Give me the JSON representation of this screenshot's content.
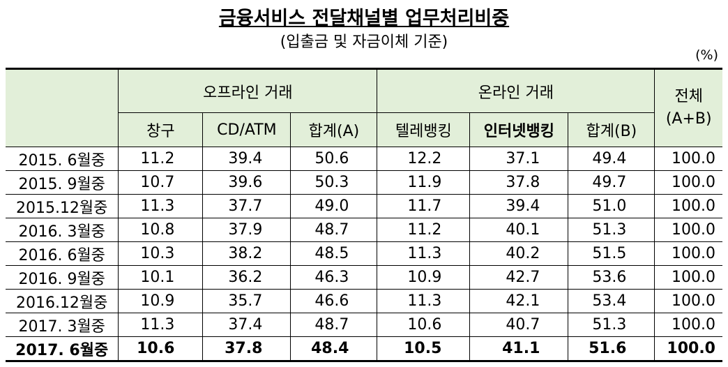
{
  "header": {
    "title": "금융서비스 전달채널별 업무처리비중",
    "subtitle": "(입출금 및 자금이체 기준)",
    "unit": "(%)"
  },
  "table": {
    "groups": [
      "오프라인 거래",
      "온라인 거래",
      "전체\n(A+B)"
    ],
    "columns": [
      "창구",
      "CD/ATM",
      "합계(A)",
      "텔레뱅킹",
      "인터넷뱅킹",
      "합계(B)"
    ],
    "rows": [
      [
        "2015. 6월중",
        "11.2",
        "39.4",
        "50.6",
        "12.2",
        "37.1",
        "49.4",
        "100.0"
      ],
      [
        "2015. 9월중",
        "10.7",
        "39.6",
        "50.3",
        "11.9",
        "37.8",
        "49.7",
        "100.0"
      ],
      [
        "2015.12월중",
        "11.3",
        "37.7",
        "49.0",
        "11.7",
        "39.4",
        "51.0",
        "100.0"
      ],
      [
        "2016. 3월중",
        "10.8",
        "37.9",
        "48.7",
        "11.2",
        "40.1",
        "51.3",
        "100.0"
      ],
      [
        "2016. 6월중",
        "10.3",
        "38.2",
        "48.5",
        "11.3",
        "40.2",
        "51.5",
        "100.0"
      ],
      [
        "2016. 9월중",
        "10.1",
        "36.2",
        "46.3",
        "10.9",
        "42.7",
        "53.6",
        "100.0"
      ],
      [
        "2016.12월중",
        "10.9",
        "35.7",
        "46.6",
        "11.3",
        "42.1",
        "53.4",
        "100.0"
      ],
      [
        "2017. 3월중",
        "11.3",
        "37.4",
        "48.7",
        "10.6",
        "40.7",
        "51.3",
        "100.0"
      ],
      [
        "2017. 6월중",
        "10.6",
        "37.8",
        "48.4",
        "10.5",
        "41.1",
        "51.6",
        "100.0"
      ]
    ]
  }
}
